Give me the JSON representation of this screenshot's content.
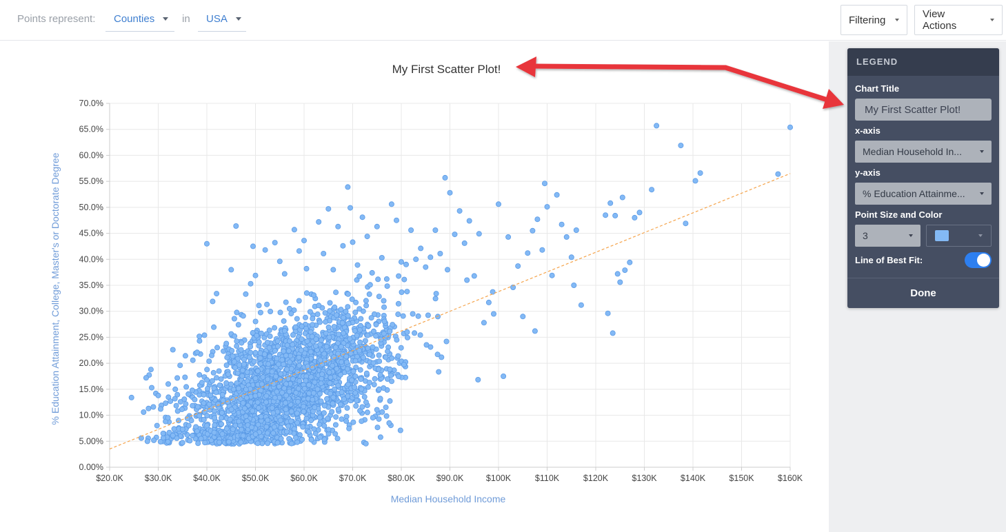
{
  "topbar": {
    "points_label": "Points represent:",
    "points_value": "Counties",
    "in_label": "in",
    "region_value": "USA",
    "filtering_label": "Filtering",
    "view_actions_label": "View Actions"
  },
  "legend": {
    "header": "LEGEND",
    "chart_title_label": "Chart Title",
    "chart_title_value": "My First Scatter Plot!",
    "x_axis_label": "x-axis",
    "x_axis_value": "Median Household In...",
    "y_axis_label": "y-axis",
    "y_axis_value": "% Education Attainme...",
    "point_label": "Point Size and Color",
    "point_size_value": "3",
    "point_color": "#83b9f5",
    "best_fit_label": "Line of Best Fit:",
    "best_fit_on": true,
    "done_label": "Done"
  },
  "chart_data": {
    "type": "scatter",
    "title": "My First Scatter Plot!",
    "xlabel": "Median Household Income",
    "ylabel": "% Education Attainment, College, Master's or Doctorate Degree",
    "xlim": [
      20000,
      160000
    ],
    "ylim": [
      0,
      70
    ],
    "x_ticks": [
      "$20.0K",
      "$30.0K",
      "$40.0K",
      "$50.0K",
      "$60.0K",
      "$70.0K",
      "$80.0K",
      "$90.0K",
      "$100K",
      "$110K",
      "$120K",
      "$130K",
      "$140K",
      "$150K",
      "$160K"
    ],
    "y_ticks": [
      "0.00%",
      "5.00%",
      "10.0%",
      "15.0%",
      "20.0%",
      "25.0%",
      "30.0%",
      "35.0%",
      "40.0%",
      "45.0%",
      "50.0%",
      "55.0%",
      "60.0%",
      "65.0%",
      "70.0%"
    ],
    "grid": true,
    "point_color": "#83b9f5",
    "point_stroke": "#5a9ae6",
    "trend_color": "#f5a34a",
    "trend_line": [
      [
        20000,
        3.5
      ],
      [
        160000,
        56.5
      ]
    ],
    "points": [
      [
        24500,
        13.4
      ],
      [
        27000,
        10.6
      ],
      [
        27500,
        17.2
      ],
      [
        28000,
        11.3
      ],
      [
        28500,
        18.8
      ],
      [
        29000,
        11.6
      ],
      [
        29500,
        14.2
      ],
      [
        30000,
        13.8
      ],
      [
        30500,
        11.2
      ],
      [
        31000,
        6.5
      ],
      [
        31500,
        8.8
      ],
      [
        32000,
        9.5
      ],
      [
        32000,
        4.9
      ],
      [
        32500,
        12.7
      ],
      [
        33000,
        22.6
      ],
      [
        33000,
        6.1
      ],
      [
        33500,
        15.0
      ],
      [
        34000,
        10.8
      ],
      [
        34500,
        19.6
      ],
      [
        35000,
        7.3
      ],
      [
        35500,
        17.3
      ],
      [
        36000,
        9.4
      ],
      [
        36500,
        5.1
      ],
      [
        37000,
        14.8
      ],
      [
        37500,
        13.0
      ],
      [
        38000,
        22.1
      ],
      [
        38500,
        24.3
      ],
      [
        39000,
        16.3
      ],
      [
        39500,
        25.4
      ],
      [
        40000,
        43.0
      ],
      [
        40500,
        12.1
      ],
      [
        41000,
        21.5
      ],
      [
        42000,
        33.4
      ],
      [
        42500,
        18.5
      ],
      [
        43000,
        8.3
      ],
      [
        44000,
        23.8
      ],
      [
        45000,
        38.0
      ],
      [
        46000,
        46.4
      ],
      [
        46500,
        27.4
      ],
      [
        47000,
        4.8
      ],
      [
        48000,
        33.3
      ],
      [
        49000,
        35.3
      ],
      [
        49500,
        42.5
      ],
      [
        50000,
        36.9
      ],
      [
        51000,
        21.0
      ],
      [
        52000,
        41.8
      ],
      [
        53000,
        25.2
      ],
      [
        54000,
        43.2
      ],
      [
        55000,
        39.6
      ],
      [
        56000,
        37.2
      ],
      [
        57000,
        30.5
      ],
      [
        58000,
        45.7
      ],
      [
        59000,
        41.6
      ],
      [
        60000,
        43.6
      ],
      [
        60500,
        38.2
      ],
      [
        61000,
        6.8
      ],
      [
        61500,
        5.3
      ],
      [
        62000,
        33.1
      ],
      [
        63000,
        47.2
      ],
      [
        64000,
        41.1
      ],
      [
        65000,
        49.7
      ],
      [
        66000,
        38.0
      ],
      [
        67000,
        46.3
      ],
      [
        68000,
        42.6
      ],
      [
        69000,
        53.9
      ],
      [
        69500,
        49.9
      ],
      [
        70000,
        43.3
      ],
      [
        71000,
        38.9
      ],
      [
        72000,
        48.1
      ],
      [
        73000,
        44.4
      ],
      [
        74000,
        37.4
      ],
      [
        75000,
        46.3
      ],
      [
        76000,
        40.3
      ],
      [
        77000,
        36.2
      ],
      [
        77500,
        8.5
      ],
      [
        78000,
        50.6
      ],
      [
        79000,
        47.5
      ],
      [
        80000,
        39.5
      ],
      [
        81000,
        39.0
      ],
      [
        82000,
        45.6
      ],
      [
        83000,
        40.0
      ],
      [
        84000,
        42.1
      ],
      [
        85000,
        38.5
      ],
      [
        86000,
        40.4
      ],
      [
        87000,
        45.6
      ],
      [
        88000,
        41.1
      ],
      [
        89000,
        55.7
      ],
      [
        89500,
        38.0
      ],
      [
        90000,
        52.8
      ],
      [
        91000,
        44.8
      ],
      [
        92000,
        49.3
      ],
      [
        93000,
        43.1
      ],
      [
        94000,
        47.4
      ],
      [
        95000,
        36.8
      ],
      [
        96000,
        44.9
      ],
      [
        97000,
        27.8
      ],
      [
        98000,
        31.7
      ],
      [
        99000,
        29.5
      ],
      [
        100000,
        50.6
      ],
      [
        101000,
        17.5
      ],
      [
        102000,
        44.3
      ],
      [
        103000,
        34.6
      ],
      [
        104000,
        38.7
      ],
      [
        105000,
        29.0
      ],
      [
        106000,
        41.2
      ],
      [
        107000,
        45.5
      ],
      [
        107500,
        26.2
      ],
      [
        108000,
        47.7
      ],
      [
        109000,
        41.8
      ],
      [
        109500,
        54.6
      ],
      [
        110000,
        50.1
      ],
      [
        111000,
        36.9
      ],
      [
        112000,
        52.4
      ],
      [
        113000,
        46.7
      ],
      [
        114000,
        44.3
      ],
      [
        115000,
        40.4
      ],
      [
        115500,
        35.0
      ],
      [
        116000,
        45.6
      ],
      [
        117000,
        31.2
      ],
      [
        122000,
        48.5
      ],
      [
        122500,
        29.6
      ],
      [
        123000,
        50.8
      ],
      [
        123500,
        25.8
      ],
      [
        124000,
        48.4
      ],
      [
        124500,
        37.2
      ],
      [
        125000,
        35.6
      ],
      [
        125500,
        51.9
      ],
      [
        126000,
        37.9
      ],
      [
        127000,
        39.4
      ],
      [
        128000,
        48.0
      ],
      [
        129000,
        49.0
      ],
      [
        131500,
        53.4
      ],
      [
        132500,
        65.7
      ],
      [
        137500,
        61.9
      ],
      [
        138500,
        46.9
      ],
      [
        140500,
        55.1
      ],
      [
        141500,
        56.6
      ],
      [
        157500,
        56.4
      ],
      [
        160000,
        65.4
      ]
    ]
  }
}
